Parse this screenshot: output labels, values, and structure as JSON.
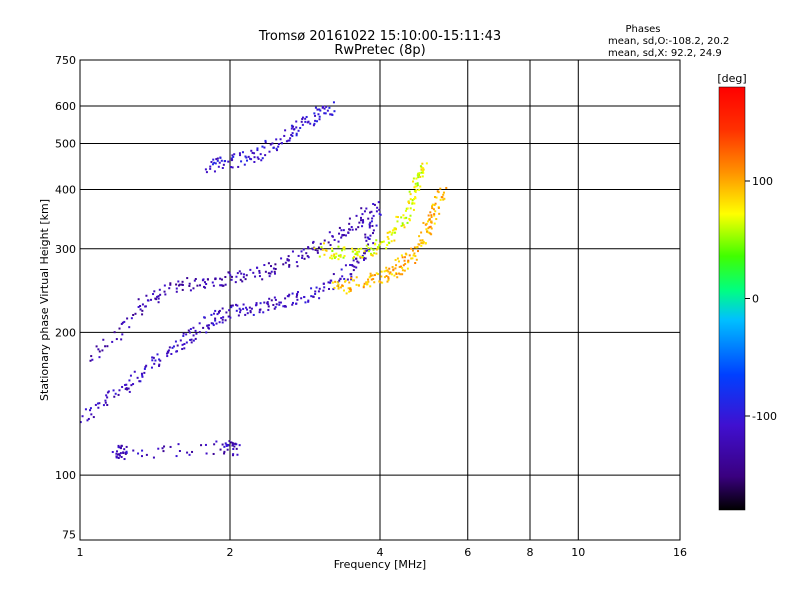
{
  "chart_data": {
    "type": "scatter",
    "title": "Tromsø 20161022 15:10:00-15:11:43",
    "subtitle": "RwPretec (8p)",
    "xlabel": "Frequency [MHz]",
    "ylabel": "Stationary phase Virtual Height [km]",
    "x_scale": "log",
    "y_scale": "log",
    "xlim": [
      1,
      16
    ],
    "ylim": [
      73,
      750
    ],
    "grid": true,
    "x_ticks": [
      1,
      2,
      4,
      6,
      8,
      10,
      16
    ],
    "x_tick_labels": [
      "1",
      "2",
      "4",
      "6",
      "8",
      "10",
      "16"
    ],
    "y_ticks": [
      75,
      100,
      200,
      300,
      400,
      500,
      600,
      750
    ],
    "y_tick_labels": [
      "75",
      "100",
      "200",
      "300",
      "400",
      "500",
      "600",
      "750"
    ],
    "stats_panel": {
      "heading": "Phases",
      "line1": "mean, sd,O:-108.2, 20.2",
      "line2": "mean, sd,X:  92.2, 24.9"
    },
    "colorbar": {
      "label": "[deg]",
      "range": [
        -180,
        180
      ],
      "ticks": [
        100,
        0,
        -100
      ],
      "tick_labels": [
        "100",
        "0",
        "-100"
      ]
    },
    "traces": [
      {
        "description": "O-mode E/F1 trace lower",
        "phase": -115,
        "points": [
          [
            1.0,
            132
          ],
          [
            1.2,
            152
          ],
          [
            1.4,
            172
          ],
          [
            1.6,
            192
          ],
          [
            1.8,
            210
          ],
          [
            2.0,
            222
          ],
          [
            2.3,
            228
          ],
          [
            2.6,
            234
          ],
          [
            3.0,
            245
          ],
          [
            3.5,
            270
          ],
          [
            3.8,
            310
          ],
          [
            3.95,
            380
          ]
        ]
      },
      {
        "description": "O-mode E/F1 trace upper",
        "phase": -125,
        "points": [
          [
            1.05,
            175
          ],
          [
            1.3,
            225
          ],
          [
            1.5,
            250
          ],
          [
            1.8,
            258
          ],
          [
            2.1,
            262
          ],
          [
            2.5,
            275
          ],
          [
            2.9,
            300
          ],
          [
            3.4,
            330
          ],
          [
            3.8,
            360
          ]
        ]
      },
      {
        "description": "O-mode top band",
        "phase": -105,
        "points": [
          [
            1.8,
            450
          ],
          [
            2.0,
            460
          ],
          [
            2.3,
            480
          ],
          [
            2.6,
            520
          ],
          [
            2.9,
            570
          ],
          [
            3.2,
            600
          ]
        ]
      },
      {
        "description": "X-mode F trace",
        "phase": 95,
        "points": [
          [
            3.2,
            248
          ],
          [
            3.6,
            255
          ],
          [
            4.0,
            262
          ],
          [
            4.3,
            272
          ],
          [
            4.6,
            290
          ],
          [
            4.9,
            320
          ],
          [
            5.1,
            360
          ],
          [
            5.3,
            400
          ]
        ]
      },
      {
        "description": "X-mode second trace",
        "phase": 70,
        "points": [
          [
            3.0,
            300
          ],
          [
            3.4,
            295
          ],
          [
            3.8,
            300
          ],
          [
            4.2,
            320
          ],
          [
            4.5,
            360
          ],
          [
            4.7,
            410
          ],
          [
            4.9,
            450
          ]
        ]
      },
      {
        "description": "scatter near 1.2 MHz",
        "phase": -120,
        "points": [
          [
            1.18,
            113
          ],
          [
            1.22,
            112
          ],
          [
            1.95,
            115
          ],
          [
            2.05,
            114
          ]
        ]
      }
    ]
  }
}
